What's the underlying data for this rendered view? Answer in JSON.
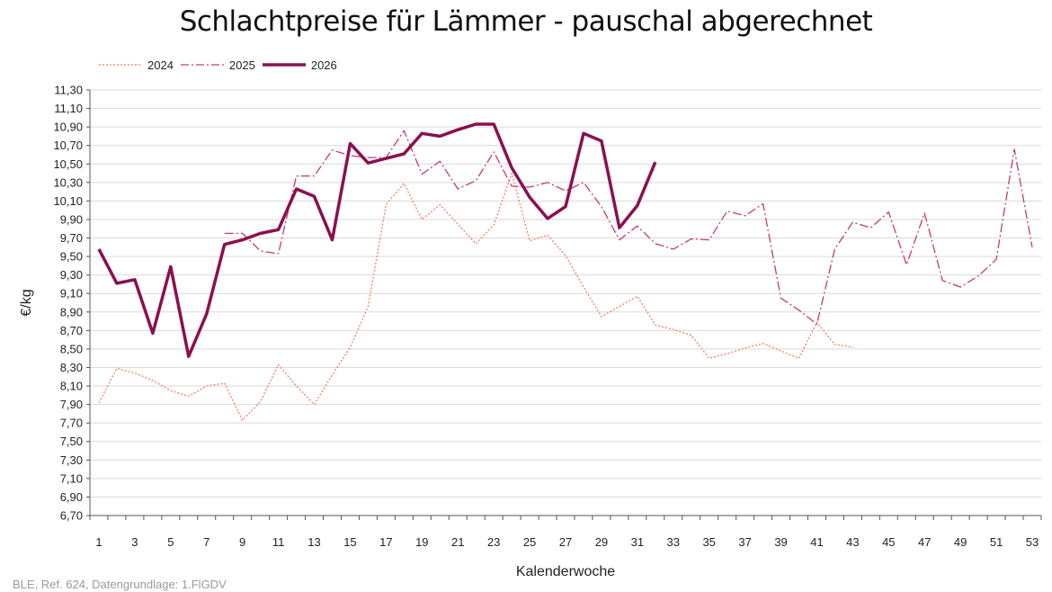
{
  "chart_data": {
    "type": "line",
    "title": "Schlachtpreise für Lämmer - pauschal abgerechnet",
    "xlabel": "Kalenderwoche",
    "ylabel": "€/kg",
    "xlim": [
      1,
      53
    ],
    "ylim": [
      6.7,
      11.3
    ],
    "x_ticks": [
      "1",
      "3",
      "5",
      "7",
      "9",
      "11",
      "13",
      "15",
      "17",
      "19",
      "21",
      "23",
      "25",
      "27",
      "29",
      "31",
      "33",
      "35",
      "37",
      "39",
      "41",
      "43",
      "45",
      "47",
      "49",
      "51",
      "53"
    ],
    "y_ticks": [
      "6,70",
      "6,90",
      "7,10",
      "7,30",
      "7,50",
      "7,70",
      "7,90",
      "8,10",
      "8,30",
      "8,50",
      "8,70",
      "8,90",
      "9,10",
      "9,30",
      "9,50",
      "9,70",
      "9,90",
      "10,10",
      "10,30",
      "10,50",
      "10,70",
      "10,90",
      "11,10",
      "11,30"
    ],
    "grid": true,
    "legend_position": "top-left",
    "series": [
      {
        "name": "2024",
        "color": "#f08060",
        "style": "dotted",
        "x": [
          1,
          2,
          3,
          4,
          5,
          6,
          7,
          8,
          9,
          10,
          11,
          12,
          13,
          14,
          15,
          16,
          17,
          18,
          19,
          20,
          21,
          22,
          23,
          24,
          25,
          26,
          27,
          28,
          29,
          30,
          31,
          32,
          33,
          34,
          35,
          36,
          37,
          38,
          39,
          40,
          41,
          42,
          43
        ],
        "values": [
          7.92,
          8.29,
          8.24,
          8.16,
          8.05,
          7.99,
          8.1,
          8.13,
          7.73,
          7.93,
          8.33,
          8.1,
          7.9,
          8.22,
          8.52,
          8.96,
          10.06,
          10.29,
          9.9,
          10.06,
          9.85,
          9.64,
          9.84,
          10.4,
          9.67,
          9.73,
          9.51,
          9.17,
          8.85,
          8.96,
          9.07,
          8.76,
          8.71,
          8.65,
          8.4,
          8.45,
          8.51,
          8.56,
          8.48,
          8.4,
          8.79,
          8.55,
          8.52
        ]
      },
      {
        "name": "2025",
        "color": "#c03c78",
        "style": "dash-dot",
        "x": [
          8,
          9,
          10,
          11,
          12,
          13,
          14,
          15,
          16,
          17,
          18,
          19,
          20,
          21,
          22,
          23,
          24,
          25,
          26,
          27,
          28,
          29,
          30,
          31,
          32,
          33,
          34,
          35,
          36,
          37,
          38,
          39,
          40,
          41,
          42,
          43,
          44,
          45,
          46,
          47,
          48,
          49,
          50,
          51,
          52,
          53
        ],
        "values": [
          9.75,
          9.75,
          9.56,
          9.53,
          10.37,
          10.37,
          10.65,
          10.59,
          10.57,
          10.57,
          10.86,
          10.39,
          10.53,
          10.23,
          10.32,
          10.63,
          10.26,
          10.25,
          10.3,
          10.21,
          10.3,
          10.04,
          9.68,
          9.83,
          9.64,
          9.58,
          9.69,
          9.68,
          9.99,
          9.94,
          10.07,
          9.05,
          8.92,
          8.77,
          9.58,
          9.87,
          9.81,
          9.98,
          9.41,
          9.97,
          9.24,
          9.17,
          9.29,
          9.47,
          10.66,
          9.6
        ]
      },
      {
        "name": "2026",
        "color": "#8a1050",
        "style": "solid",
        "x": [
          1,
          2,
          3,
          4,
          5,
          6,
          7,
          8,
          9,
          10,
          11,
          12,
          13,
          14,
          15,
          16,
          17,
          18,
          19,
          20,
          21,
          22,
          23,
          24,
          25,
          26,
          27,
          28,
          29,
          30,
          31,
          32
        ],
        "values": [
          9.58,
          9.21,
          9.25,
          8.67,
          9.39,
          8.42,
          8.88,
          9.63,
          9.68,
          9.75,
          9.79,
          10.23,
          10.15,
          9.68,
          10.72,
          10.51,
          10.56,
          10.61,
          10.83,
          10.8,
          10.87,
          10.93,
          10.93,
          10.46,
          10.14,
          9.91,
          10.04,
          10.83,
          10.75,
          9.81,
          10.05,
          10.52
        ]
      }
    ]
  },
  "footer": {
    "source": "BLE, Ref. 624, Datengrundlage: 1.FlGDV"
  }
}
